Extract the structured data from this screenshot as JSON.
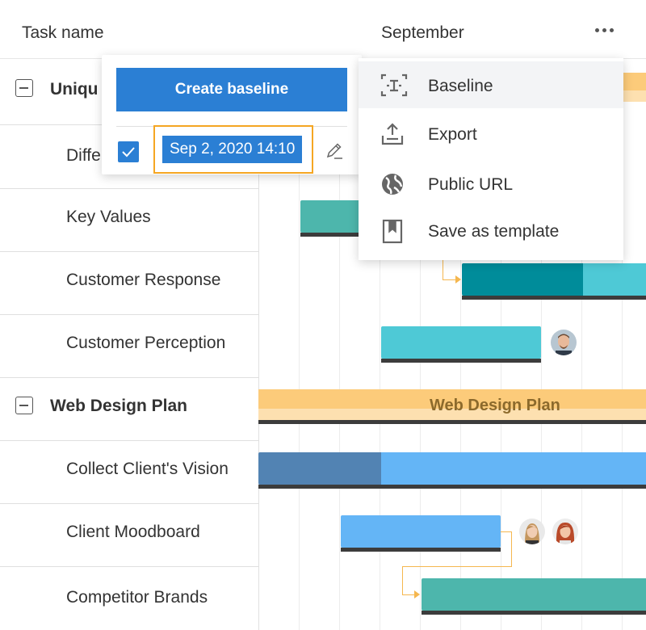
{
  "header": {
    "task_col": "Task name",
    "timeline_month": "September"
  },
  "rows": [
    {
      "label": "Uniqu",
      "group": true
    },
    {
      "label": "Diffe",
      "group": false
    },
    {
      "label": "Key Values",
      "group": false
    },
    {
      "label": "Customer Response",
      "group": false
    },
    {
      "label": "Customer Perception",
      "group": false
    },
    {
      "label": "Web Design Plan",
      "group": true
    },
    {
      "label": "Collect Client's Vision",
      "group": false
    },
    {
      "label": "Client Moodboard",
      "group": false
    },
    {
      "label": "Competitor Brands",
      "group": false
    }
  ],
  "timeline": {
    "web_design_plan_label": "Web Design Plan"
  },
  "baseline_panel": {
    "create_label": "Create baseline",
    "baseline_date": "Sep 2, 2020 14:10",
    "checked": true
  },
  "menu": {
    "items": [
      {
        "label": "Baseline",
        "icon": "baseline-icon"
      },
      {
        "label": "Export",
        "icon": "export-icon"
      },
      {
        "label": "Public URL",
        "icon": "globe-icon"
      },
      {
        "label": "Save as template",
        "icon": "bookmark-icon"
      }
    ]
  },
  "colors": {
    "accent": "#2b7fd4",
    "highlight": "#f5a623",
    "bar_teal": "#4db6ac",
    "bar_cyan": "#4ec9d6",
    "bar_dark_teal": "#008c9a",
    "bar_blue": "#64b5f6",
    "bar_steel": "#5283b3",
    "summary_orange": "#fccb7a"
  }
}
